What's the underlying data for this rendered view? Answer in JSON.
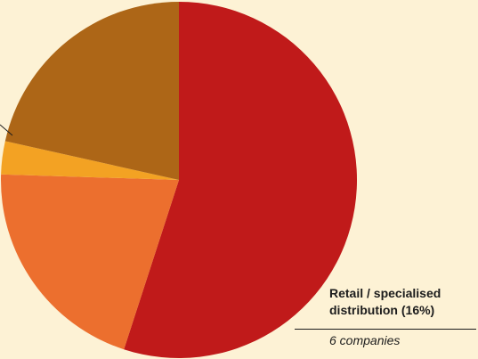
{
  "chart_data": {
    "type": "pie",
    "slices": [
      {
        "value": 55.0,
        "color": "#c01a1a"
      },
      {
        "value": 20.5,
        "color": "#ec6f2e"
      },
      {
        "value": 3.0,
        "color": "#f3a223"
      },
      {
        "value": 21.5,
        "color": "#ad6617"
      }
    ],
    "start_angle_deg": 0,
    "direction": "clockwise"
  },
  "callout": {
    "title_line1": "Retail / specialised",
    "title_line2": "distribution (16%)",
    "subtitle": "6 companies"
  },
  "colors": {
    "background": "#fdf2d5",
    "text": "#1c1c1c"
  }
}
